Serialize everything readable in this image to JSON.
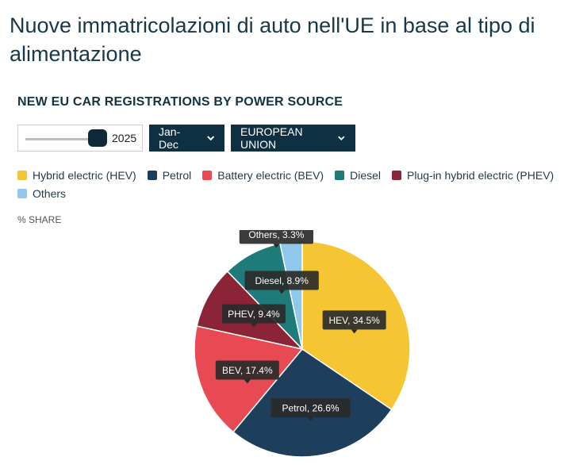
{
  "page": {
    "title": "Nuove immatricolazioni di auto nell'UE in base al tipo di alimentazione"
  },
  "widget": {
    "title": "NEW EU CAR REGISTRATIONS BY POWER SOURCE",
    "unit_label": "% SHARE"
  },
  "controls": {
    "year_slider": {
      "value": "2025",
      "position_fraction": 0.9
    },
    "period": {
      "selected": "Jan-Dec"
    },
    "region": {
      "selected": "EUROPEAN UNION"
    }
  },
  "legend_colors": {
    "hev": "#f5c534",
    "petrol": "#1e3f5c",
    "bev": "#e84a54",
    "diesel": "#1f7a7a",
    "phev": "#8b2436",
    "others": "#8fc8ea"
  },
  "chart_data": {
    "type": "pie",
    "unit": "% SHARE",
    "slices": [
      {
        "key": "hev",
        "legend": "Hybrid electric (HEV)",
        "label": "HEV, 34.5%",
        "value": 34.5,
        "color": "#f5c534"
      },
      {
        "key": "petrol",
        "legend": "Petrol",
        "label": "Petrol, 26.6%",
        "value": 26.6,
        "color": "#1e3f5c"
      },
      {
        "key": "bev",
        "legend": "Battery electric (BEV)",
        "label": "BEV, 17.4%",
        "value": 17.4,
        "color": "#e84a54"
      },
      {
        "key": "phev",
        "legend": "Plug-in hybrid electric (PHEV)",
        "label": "PHEV, 9.4%",
        "value": 9.4,
        "color": "#8b2436"
      },
      {
        "key": "diesel",
        "legend": "Diesel",
        "label": "Diesel, 8.9%",
        "value": 8.9,
        "color": "#1f7a7a"
      },
      {
        "key": "others",
        "legend": "Others",
        "label": "Others, 3.3%",
        "value": 3.3,
        "color": "#8fc8ea"
      }
    ],
    "legend_order": [
      "hev",
      "petrol",
      "bev",
      "diesel",
      "phev",
      "others"
    ]
  }
}
